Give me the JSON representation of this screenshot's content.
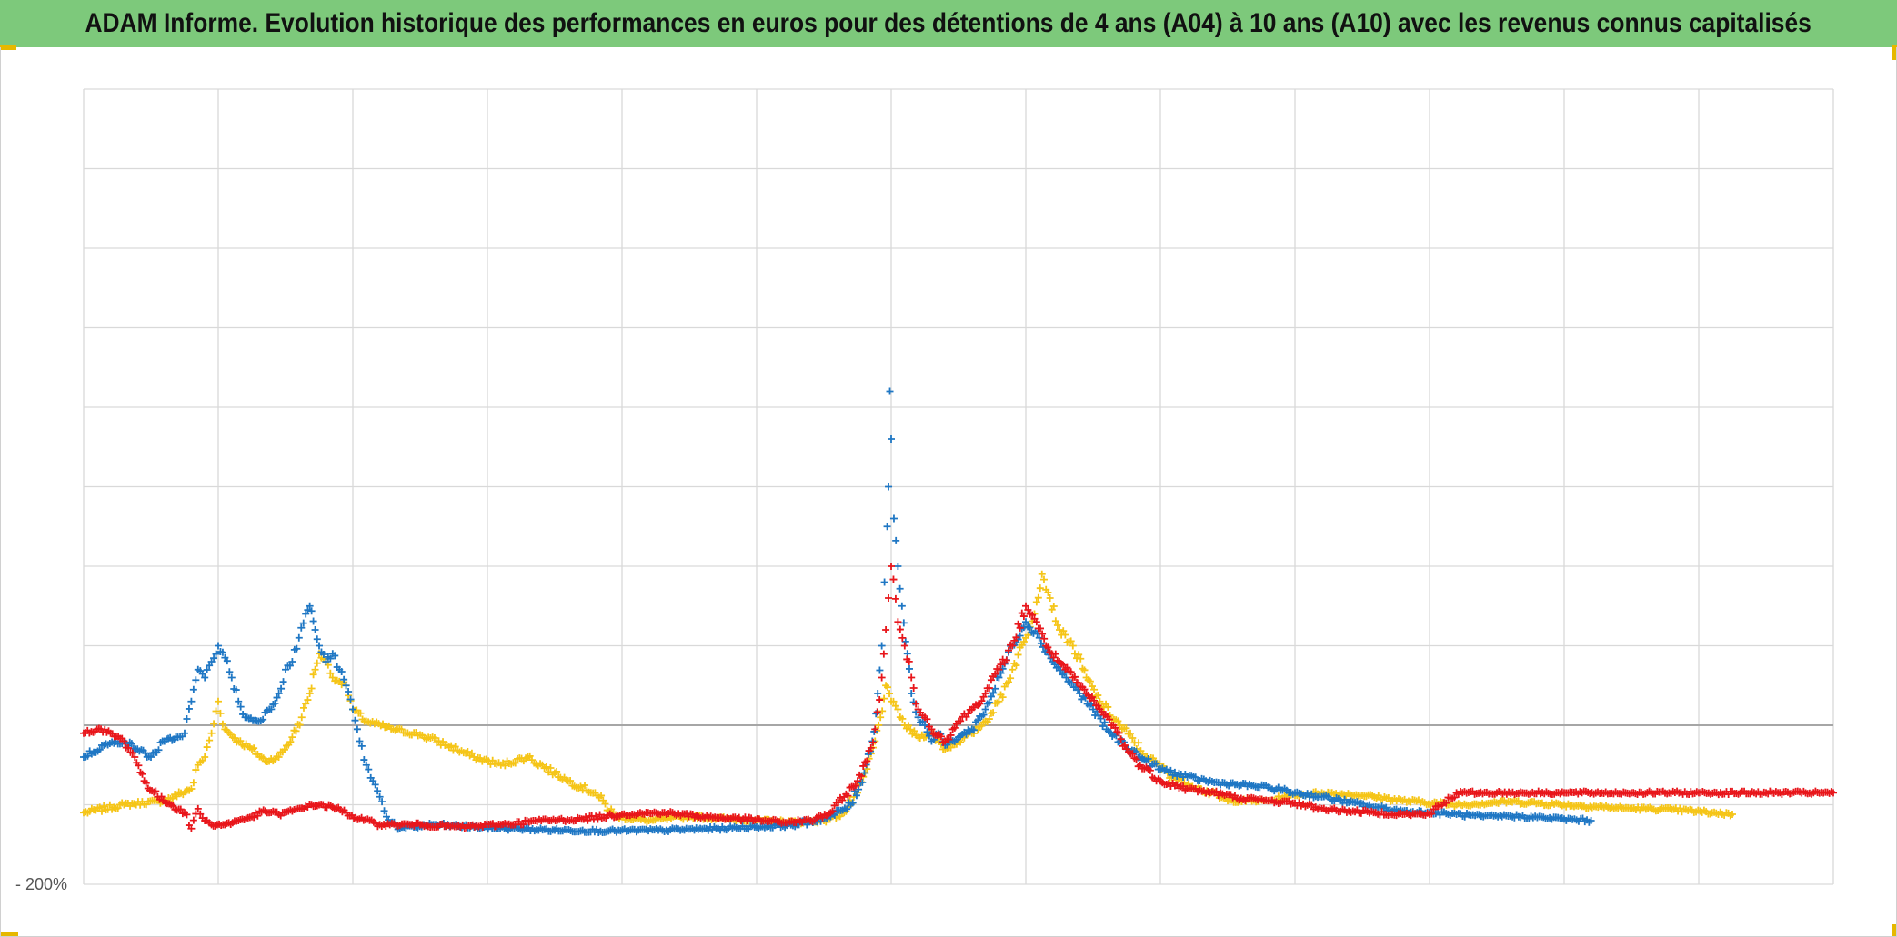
{
  "title": "ADAM Informe. Evolution historique des performances en euros pour des détentions de 4 ans (A04) à 10 ans (A10) avec les revenus connus capitalisés",
  "colors": {
    "title_bg": "#7dc97b",
    "grid": "#d9d9d9",
    "axis": "#bfbfbf",
    "corner": "#e6b800"
  },
  "chart_data": {
    "type": "scatter",
    "marker": "plus",
    "title": "ADAM Informe. Evolution historique des performances en euros pour des détentions de 4 ans (A04) à 10 ans (A10) avec les revenus connus capitalisés",
    "xlabel": "",
    "ylabel": "",
    "xlim": [
      0,
      13
    ],
    "ylim": [
      -200,
      800
    ],
    "y_tick_labels": [
      {
        "value": -200,
        "label": "- 200%"
      }
    ],
    "grid": true,
    "legend": "none",
    "series": [
      {
        "color": "#f5c518",
        "points": [
          [
            0.0,
            -110
          ],
          [
            0.3,
            -100
          ],
          [
            0.6,
            -95
          ],
          [
            0.8,
            -80
          ],
          [
            0.85,
            -50
          ],
          [
            0.9,
            -40
          ],
          [
            0.95,
            -10
          ],
          [
            1.0,
            30
          ],
          [
            1.05,
            -5
          ],
          [
            1.15,
            -20
          ],
          [
            1.25,
            -30
          ],
          [
            1.35,
            -45
          ],
          [
            1.45,
            -40
          ],
          [
            1.55,
            -15
          ],
          [
            1.62,
            10
          ],
          [
            1.68,
            40
          ],
          [
            1.72,
            70
          ],
          [
            1.75,
            90
          ],
          [
            1.8,
            80
          ],
          [
            1.85,
            60
          ],
          [
            1.9,
            55
          ],
          [
            1.95,
            50
          ],
          [
            2.0,
            20
          ],
          [
            2.1,
            5
          ],
          [
            2.3,
            -5
          ],
          [
            2.5,
            -12
          ],
          [
            2.7,
            -25
          ],
          [
            2.9,
            -40
          ],
          [
            3.1,
            -50
          ],
          [
            3.3,
            -40
          ],
          [
            3.5,
            -60
          ],
          [
            3.6,
            -70
          ],
          [
            3.8,
            -85
          ],
          [
            3.95,
            -115
          ],
          [
            4.2,
            -120
          ],
          [
            4.5,
            -115
          ],
          [
            4.8,
            -118
          ],
          [
            5.0,
            -120
          ],
          [
            5.3,
            -122
          ],
          [
            5.5,
            -120
          ],
          [
            5.65,
            -110
          ],
          [
            5.75,
            -85
          ],
          [
            5.82,
            -55
          ],
          [
            5.88,
            -20
          ],
          [
            5.92,
            10
          ],
          [
            5.96,
            50
          ],
          [
            6.0,
            30
          ],
          [
            6.05,
            20
          ],
          [
            6.1,
            0
          ],
          [
            6.2,
            -15
          ],
          [
            6.3,
            -10
          ],
          [
            6.4,
            -30
          ],
          [
            6.5,
            -20
          ],
          [
            6.6,
            -10
          ],
          [
            6.7,
            5
          ],
          [
            6.8,
            30
          ],
          [
            6.9,
            70
          ],
          [
            7.0,
            110
          ],
          [
            7.08,
            155
          ],
          [
            7.12,
            190
          ],
          [
            7.18,
            160
          ],
          [
            7.25,
            120
          ],
          [
            7.35,
            100
          ],
          [
            7.45,
            60
          ],
          [
            7.55,
            30
          ],
          [
            7.7,
            0
          ],
          [
            7.9,
            -40
          ],
          [
            8.1,
            -65
          ],
          [
            8.3,
            -80
          ],
          [
            8.5,
            -95
          ],
          [
            8.8,
            -95
          ],
          [
            9.0,
            -88
          ],
          [
            9.2,
            -85
          ],
          [
            9.5,
            -88
          ],
          [
            9.8,
            -95
          ],
          [
            10.2,
            -100
          ],
          [
            10.6,
            -96
          ],
          [
            11.0,
            -100
          ],
          [
            11.4,
            -104
          ],
          [
            11.8,
            -106
          ],
          [
            12.1,
            -110
          ],
          [
            12.25,
            -112
          ]
        ]
      },
      {
        "color": "#1f77c4",
        "points": [
          [
            0.0,
            -40
          ],
          [
            0.15,
            -25
          ],
          [
            0.3,
            -20
          ],
          [
            0.4,
            -30
          ],
          [
            0.5,
            -40
          ],
          [
            0.6,
            -20
          ],
          [
            0.7,
            -15
          ],
          [
            0.75,
            -10
          ],
          [
            0.8,
            30
          ],
          [
            0.85,
            70
          ],
          [
            0.9,
            60
          ],
          [
            0.95,
            80
          ],
          [
            1.0,
            100
          ],
          [
            1.05,
            85
          ],
          [
            1.1,
            60
          ],
          [
            1.15,
            30
          ],
          [
            1.2,
            10
          ],
          [
            1.3,
            5
          ],
          [
            1.38,
            20
          ],
          [
            1.45,
            40
          ],
          [
            1.5,
            70
          ],
          [
            1.55,
            80
          ],
          [
            1.6,
            110
          ],
          [
            1.65,
            140
          ],
          [
            1.68,
            150
          ],
          [
            1.72,
            120
          ],
          [
            1.75,
            100
          ],
          [
            1.8,
            80
          ],
          [
            1.85,
            90
          ],
          [
            1.9,
            70
          ],
          [
            1.95,
            50
          ],
          [
            2.0,
            20
          ],
          [
            2.05,
            -20
          ],
          [
            2.1,
            -50
          ],
          [
            2.15,
            -70
          ],
          [
            2.2,
            -90
          ],
          [
            2.25,
            -115
          ],
          [
            2.35,
            -130
          ],
          [
            2.6,
            -125
          ],
          [
            2.9,
            -128
          ],
          [
            3.2,
            -130
          ],
          [
            3.5,
            -132
          ],
          [
            3.9,
            -133
          ],
          [
            4.3,
            -132
          ],
          [
            4.7,
            -130
          ],
          [
            5.0,
            -128
          ],
          [
            5.3,
            -125
          ],
          [
            5.55,
            -115
          ],
          [
            5.7,
            -100
          ],
          [
            5.8,
            -60
          ],
          [
            5.86,
            -20
          ],
          [
            5.9,
            40
          ],
          [
            5.93,
            100
          ],
          [
            5.95,
            180
          ],
          [
            5.97,
            250
          ],
          [
            5.98,
            300
          ],
          [
            5.99,
            420
          ],
          [
            6.0,
            360
          ],
          [
            6.02,
            260
          ],
          [
            6.05,
            200
          ],
          [
            6.08,
            150
          ],
          [
            6.12,
            90
          ],
          [
            6.15,
            40
          ],
          [
            6.2,
            10
          ],
          [
            6.25,
            0
          ],
          [
            6.3,
            -20
          ],
          [
            6.35,
            -10
          ],
          [
            6.4,
            -25
          ],
          [
            6.5,
            -15
          ],
          [
            6.6,
            -5
          ],
          [
            6.7,
            20
          ],
          [
            6.8,
            60
          ],
          [
            6.9,
            100
          ],
          [
            7.0,
            130
          ],
          [
            7.1,
            110
          ],
          [
            7.2,
            80
          ],
          [
            7.3,
            60
          ],
          [
            7.4,
            40
          ],
          [
            7.5,
            20
          ],
          [
            7.6,
            -5
          ],
          [
            7.7,
            -20
          ],
          [
            7.85,
            -40
          ],
          [
            8.0,
            -55
          ],
          [
            8.2,
            -65
          ],
          [
            8.4,
            -72
          ],
          [
            8.6,
            -75
          ],
          [
            8.8,
            -78
          ],
          [
            9.0,
            -85
          ],
          [
            9.2,
            -90
          ],
          [
            9.4,
            -97
          ],
          [
            9.6,
            -103
          ],
          [
            9.8,
            -108
          ],
          [
            10.0,
            -110
          ],
          [
            10.2,
            -112
          ],
          [
            10.4,
            -115
          ],
          [
            10.6,
            -114
          ],
          [
            10.8,
            -116
          ],
          [
            11.0,
            -118
          ],
          [
            11.2,
            -120
          ]
        ]
      },
      {
        "color": "#e8161b",
        "points": [
          [
            0.0,
            -10
          ],
          [
            0.1,
            -5
          ],
          [
            0.2,
            -10
          ],
          [
            0.3,
            -20
          ],
          [
            0.38,
            -40
          ],
          [
            0.45,
            -70
          ],
          [
            0.55,
            -90
          ],
          [
            0.65,
            -100
          ],
          [
            0.75,
            -110
          ],
          [
            0.8,
            -130
          ],
          [
            0.85,
            -105
          ],
          [
            0.9,
            -120
          ],
          [
            0.95,
            -125
          ],
          [
            1.05,
            -125
          ],
          [
            1.15,
            -120
          ],
          [
            1.25,
            -115
          ],
          [
            1.35,
            -108
          ],
          [
            1.45,
            -112
          ],
          [
            1.55,
            -108
          ],
          [
            1.65,
            -102
          ],
          [
            1.75,
            -100
          ],
          [
            1.85,
            -103
          ],
          [
            1.95,
            -110
          ],
          [
            2.05,
            -118
          ],
          [
            2.2,
            -125
          ],
          [
            2.5,
            -125
          ],
          [
            2.8,
            -128
          ],
          [
            3.1,
            -125
          ],
          [
            3.4,
            -120
          ],
          [
            3.7,
            -118
          ],
          [
            4.0,
            -112
          ],
          [
            4.3,
            -110
          ],
          [
            4.6,
            -115
          ],
          [
            4.9,
            -118
          ],
          [
            5.2,
            -122
          ],
          [
            5.4,
            -120
          ],
          [
            5.55,
            -110
          ],
          [
            5.65,
            -90
          ],
          [
            5.75,
            -70
          ],
          [
            5.82,
            -45
          ],
          [
            5.88,
            -5
          ],
          [
            5.93,
            60
          ],
          [
            5.96,
            120
          ],
          [
            5.98,
            160
          ],
          [
            6.0,
            200
          ],
          [
            6.05,
            130
          ],
          [
            6.1,
            100
          ],
          [
            6.15,
            60
          ],
          [
            6.2,
            20
          ],
          [
            6.25,
            10
          ],
          [
            6.3,
            -5
          ],
          [
            6.4,
            -20
          ],
          [
            6.5,
            5
          ],
          [
            6.6,
            20
          ],
          [
            6.7,
            40
          ],
          [
            6.8,
            70
          ],
          [
            6.9,
            100
          ],
          [
            7.0,
            150
          ],
          [
            7.08,
            130
          ],
          [
            7.15,
            100
          ],
          [
            7.25,
            80
          ],
          [
            7.35,
            60
          ],
          [
            7.45,
            40
          ],
          [
            7.55,
            20
          ],
          [
            7.65,
            0
          ],
          [
            7.75,
            -30
          ],
          [
            7.85,
            -50
          ],
          [
            8.0,
            -70
          ],
          [
            8.2,
            -80
          ],
          [
            8.4,
            -85
          ],
          [
            8.6,
            -92
          ],
          [
            8.8,
            -95
          ],
          [
            9.0,
            -98
          ],
          [
            9.2,
            -105
          ],
          [
            9.4,
            -108
          ],
          [
            9.6,
            -110
          ],
          [
            9.8,
            -112
          ],
          [
            10.0,
            -112
          ],
          [
            10.2,
            -85
          ],
          [
            10.5,
            -85
          ],
          [
            11.0,
            -85
          ],
          [
            11.5,
            -85
          ],
          [
            12.0,
            -85
          ],
          [
            12.5,
            -85
          ],
          [
            13.0,
            -85
          ]
        ]
      }
    ]
  }
}
